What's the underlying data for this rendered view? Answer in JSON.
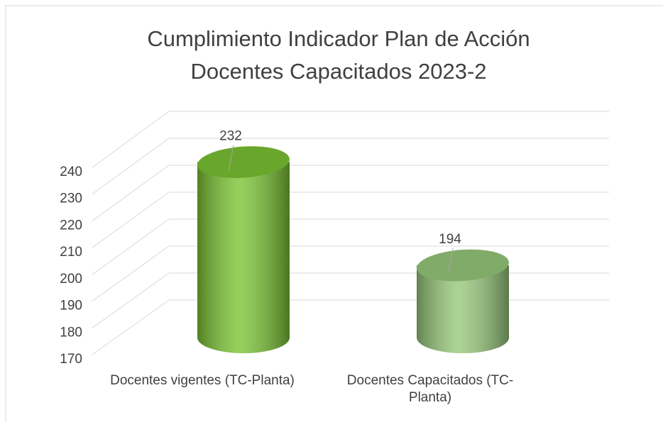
{
  "chart_data": {
    "type": "cylinder",
    "title": [
      "Cumplimiento Indicador Plan de Acción",
      "Docentes Capacitados 2023-2"
    ],
    "categories": [
      "Docentes vigentes (TC-Planta)",
      "Docentes Capacitados (TC-Planta)"
    ],
    "values": [
      232,
      194
    ],
    "colors": [
      "#7cc534",
      "#98c97c"
    ],
    "ylim": [
      170,
      240
    ],
    "yticks": [
      170,
      180,
      190,
      200,
      210,
      220,
      230,
      240
    ],
    "grid": true
  }
}
